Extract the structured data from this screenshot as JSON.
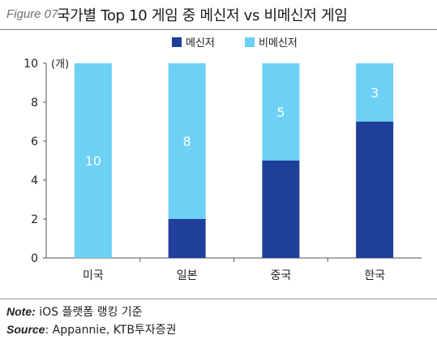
{
  "header": {
    "figure_label": "Figure 07",
    "title": "국가별 Top 10 게임 중 메신저 vs 비메신저 게임"
  },
  "footer": {
    "note_label": "Note:",
    "note_text": " iOS 플랫폼 랭킹 기준",
    "source_label": "Source",
    "source_text": ": Appannie, KTB투자증권"
  },
  "chart_data": {
    "type": "bar",
    "stacked": true,
    "categories": [
      "미국",
      "일본",
      "중국",
      "한국"
    ],
    "series": [
      {
        "name": "메신저",
        "values": [
          0,
          2,
          5,
          7
        ],
        "color": "#1f3f9a"
      },
      {
        "name": "비메신저",
        "values": [
          10,
          8,
          5,
          3
        ],
        "color": "#6dd0f5"
      }
    ],
    "data_labels": [
      "10",
      "8",
      "5",
      "3"
    ],
    "yunit": "(개)",
    "ylim": [
      0,
      10
    ],
    "yticks": [
      0,
      2,
      4,
      6,
      8,
      10
    ],
    "legend_position": "top-center",
    "grid": false
  }
}
